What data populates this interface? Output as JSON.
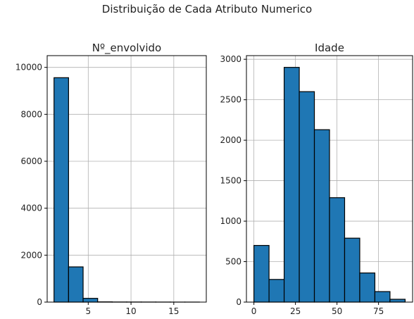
{
  "figure": {
    "suptitle": "Distribuição de Cada Atributo Numerico"
  },
  "colors": {
    "bar_fill": "#1f77b4",
    "bar_edge": "#000000",
    "grid": "#b0b0b0"
  },
  "chart_data": [
    {
      "type": "bar",
      "title": "Nº_envolvido",
      "xlabel": "",
      "ylabel": "",
      "grid": true,
      "bins": [
        [
          1,
          2.7
        ],
        [
          2.7,
          4.4
        ],
        [
          4.4,
          6.1
        ],
        [
          6.1,
          7.8
        ],
        [
          7.8,
          9.5
        ],
        [
          9.5,
          11.2
        ],
        [
          11.2,
          12.9
        ],
        [
          12.9,
          14.6
        ],
        [
          14.6,
          16.3
        ],
        [
          16.3,
          18
        ]
      ],
      "values": [
        9560,
        1500,
        160,
        10,
        5,
        4,
        3,
        2,
        1,
        1
      ],
      "xlim": [
        0.2,
        18.8
      ],
      "ylim": [
        0,
        10500
      ],
      "xticks": [
        5,
        10,
        15
      ],
      "yticks": [
        0,
        2000,
        4000,
        6000,
        8000,
        10000
      ]
    },
    {
      "type": "bar",
      "title": "Idade",
      "xlabel": "",
      "ylabel": "",
      "grid": true,
      "bins": [
        [
          0,
          9.1
        ],
        [
          9.1,
          18.2
        ],
        [
          18.2,
          27.3
        ],
        [
          27.3,
          36.4
        ],
        [
          36.4,
          45.5
        ],
        [
          45.5,
          54.6
        ],
        [
          54.6,
          63.7
        ],
        [
          63.7,
          72.8
        ],
        [
          72.8,
          81.9
        ],
        [
          81.9,
          91
        ]
      ],
      "values": [
        700,
        280,
        2900,
        2600,
        2130,
        1290,
        790,
        360,
        130,
        35
      ],
      "xlim": [
        -4.5,
        95.5
      ],
      "ylim": [
        0,
        3045
      ],
      "xticks": [
        0,
        25,
        50,
        75
      ],
      "yticks": [
        0,
        500,
        1000,
        1500,
        2000,
        2500,
        3000
      ]
    }
  ]
}
